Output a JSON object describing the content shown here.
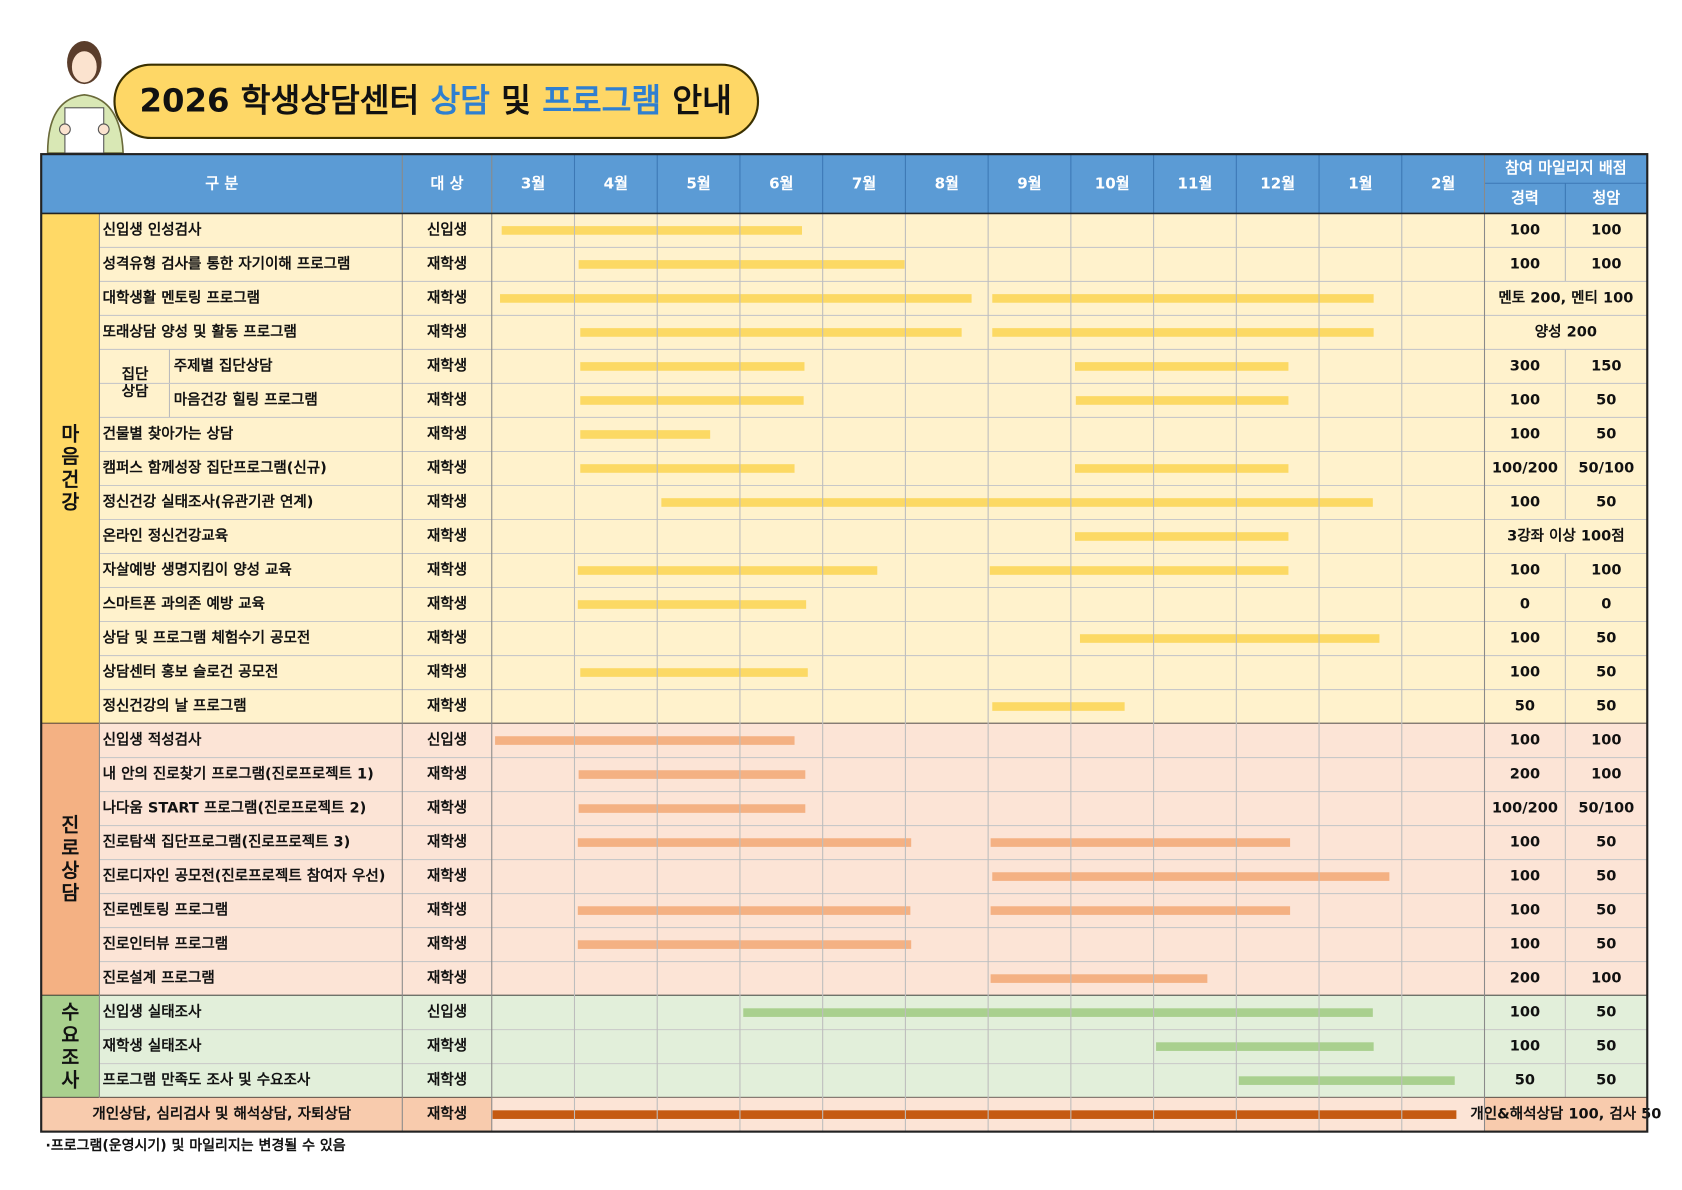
{
  "title_parts": [
    "2026 학생상담센터 ",
    "상담",
    " 및 ",
    "프로그램",
    " 안내"
  ],
  "header": {
    "category": "구   분",
    "target": "대 상",
    "months": [
      "3월",
      "4월",
      "5월",
      "6월",
      "7월",
      "8월",
      "9월",
      "10월",
      "11월",
      "12월",
      "1월",
      "2월"
    ],
    "mileage": "참여 마일리지 배점",
    "mileage_cols": [
      "경력",
      "청암"
    ]
  },
  "sections": [
    {
      "label": "마음건강",
      "rows": [
        {
          "name": "신입생 인성검사",
          "target": "신입생",
          "bars": [
            [
              0.12,
              3.75
            ]
          ],
          "mileage": [
            "100",
            "100"
          ]
        },
        {
          "name": "성격유형 검사를 통한 자기이해 프로그램",
          "target": "재학생",
          "bars": [
            [
              1.05,
              4.99
            ]
          ],
          "mileage": [
            "100",
            "100"
          ]
        },
        {
          "name": "대학생활 멘토링 프로그램",
          "target": "재학생",
          "bars": [
            [
              0.1,
              5.8
            ],
            [
              6.05,
              10.66
            ]
          ],
          "mileage": [
            "멘토 200, 멘티 100"
          ]
        },
        {
          "name": "또래상담 양성 및 활동 프로그램",
          "target": "재학생",
          "bars": [
            [
              1.07,
              5.68
            ],
            [
              6.05,
              10.66
            ]
          ],
          "mileage": [
            "양성 200"
          ]
        },
        {
          "group": "집단상담",
          "rows": [
            {
              "name": "주제별 집단상담",
              "target": "재학생",
              "bars": [
                [
                  1.07,
                  3.78
                ],
                [
                  7.05,
                  9.63
                ]
              ],
              "mileage": [
                "300",
                "150"
              ]
            },
            {
              "name": "마음건강 힐링 프로그램",
              "target": "재학생",
              "bars": [
                [
                  1.07,
                  3.77
                ],
                [
                  7.06,
                  9.63
                ]
              ],
              "mileage": [
                "100",
                "50"
              ]
            }
          ]
        },
        {
          "name": "건물별 찾아가는 상담",
          "target": "재학생",
          "bars": [
            [
              1.07,
              2.64
            ]
          ],
          "mileage": [
            "100",
            "50"
          ]
        },
        {
          "name": "캠퍼스 함께성장 집단프로그램(신규)",
          "target": "재학생",
          "bars": [
            [
              1.07,
              3.66
            ],
            [
              7.05,
              9.63
            ]
          ],
          "mileage": [
            "100/200",
            "50/100"
          ]
        },
        {
          "name": "정신건강 실태조사(유관기관 연계)",
          "target": "재학생",
          "bars": [
            [
              2.05,
              10.65
            ]
          ],
          "mileage": [
            "100",
            "50"
          ]
        },
        {
          "name": "온라인 정신건강교육",
          "target": "재학생",
          "bars": [
            [
              7.05,
              9.63
            ]
          ],
          "mileage": [
            "3강좌 이상 100점"
          ]
        },
        {
          "name": "자살예방 생명지킴이 양성 교육",
          "target": "재학생",
          "bars": [
            [
              1.04,
              4.66
            ],
            [
              6.02,
              9.63
            ]
          ],
          "mileage": [
            "100",
            "100"
          ]
        },
        {
          "name": "스마트폰 과의존 예방 교육",
          "target": "재학생",
          "bars": [
            [
              1.04,
              3.8
            ]
          ],
          "mileage": [
            "0",
            "0"
          ]
        },
        {
          "name": "상담 및 프로그램 체험수기 공모전",
          "target": "재학생",
          "bars": [
            [
              7.11,
              10.73
            ]
          ],
          "mileage": [
            "100",
            "50"
          ]
        },
        {
          "name": "상담센터 홍보 슬로건 공모전",
          "target": "재학생",
          "bars": [
            [
              1.07,
              3.82
            ]
          ],
          "mileage": [
            "100",
            "50"
          ]
        },
        {
          "name": "정신건강의 날 프로그램",
          "target": "재학생",
          "bars": [
            [
              6.05,
              7.65
            ]
          ],
          "mileage": [
            "50",
            "50"
          ]
        }
      ]
    },
    {
      "label": "진로상담",
      "rows": [
        {
          "name": "신입생 적성검사",
          "target": "신입생",
          "bars": [
            [
              0.04,
              3.66
            ]
          ],
          "mileage": [
            "100",
            "100"
          ]
        },
        {
          "name": "내 안의 진로찾기 프로그램(진로프로젝트 1)",
          "target": "재학생",
          "bars": [
            [
              1.05,
              3.79
            ]
          ],
          "mileage": [
            "200",
            "100"
          ]
        },
        {
          "name": "나다움 START 프로그램(진로프로젝트 2)",
          "target": "재학생",
          "bars": [
            [
              1.05,
              3.79
            ]
          ],
          "mileage": [
            "100/200",
            "50/100"
          ]
        },
        {
          "name": "진로탐색 집단프로그램(진로프로젝트 3)",
          "target": "재학생",
          "bars": [
            [
              1.04,
              5.07
            ],
            [
              6.03,
              9.65
            ]
          ],
          "mileage": [
            "100",
            "50"
          ]
        },
        {
          "name": "진로디자인 공모전(진로프로젝트 참여자 우선)",
          "target": "재학생",
          "bars": [
            [
              6.05,
              10.85
            ]
          ],
          "mileage": [
            "100",
            "50"
          ]
        },
        {
          "name": "진로멘토링 프로그램",
          "target": "재학생",
          "bars": [
            [
              1.04,
              5.06
            ],
            [
              6.03,
              9.65
            ]
          ],
          "mileage": [
            "100",
            "50"
          ]
        },
        {
          "name": "진로인터뷰 프로그램",
          "target": "재학생",
          "bars": [
            [
              1.04,
              5.07
            ]
          ],
          "mileage": [
            "100",
            "50"
          ]
        },
        {
          "name": "진로설계 프로그램",
          "target": "재학생",
          "bars": [
            [
              6.03,
              8.65
            ]
          ],
          "mileage": [
            "200",
            "100"
          ]
        }
      ]
    },
    {
      "label": "수요조사",
      "rows": [
        {
          "name": "신입생 실태조사",
          "target": "신입생",
          "bars": [
            [
              3.04,
              10.65
            ]
          ],
          "mileage": [
            "100",
            "50"
          ]
        },
        {
          "name": "재학생 실태조사",
          "target": "재학생",
          "bars": [
            [
              8.03,
              10.66
            ]
          ],
          "mileage": [
            "100",
            "50"
          ]
        },
        {
          "name": "프로그램 만족도 조사 및 수요조사",
          "target": "재학생",
          "bars": [
            [
              9.03,
              11.64
            ]
          ],
          "mileage": [
            "50",
            "50"
          ]
        }
      ]
    }
  ],
  "last_row": {
    "name": "개인상담, 심리검사 및 해석상담, 자퇴상담",
    "target": "재학생",
    "bars": [
      [
        0.01,
        11.66
      ]
    ],
    "mileage": [
      "개인&해석상담 100, 검사 50"
    ]
  },
  "footnote": "·프로그램(운영시기) 및 마일리지는 변경될 수 있음"
}
